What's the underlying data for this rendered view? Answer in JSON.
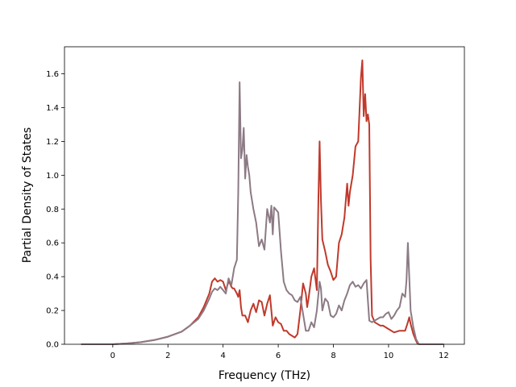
{
  "chart_data": {
    "type": "line",
    "title": "",
    "xlabel": "Frequency (THz)",
    "ylabel": "Partial Density of States",
    "xlim": [
      -1.75,
      12.75
    ],
    "ylim": [
      0,
      1.76
    ],
    "xticks": [
      0,
      2,
      4,
      6,
      8,
      10,
      12
    ],
    "yticks": [
      0.0,
      0.2,
      0.4,
      0.6,
      0.8,
      1.0,
      1.2,
      1.4,
      1.6
    ],
    "xtick_labels": [
      "0",
      "2",
      "4",
      "6",
      "8",
      "10",
      "12"
    ],
    "ytick_labels": [
      "0.0",
      "0.2",
      "0.4",
      "0.6",
      "0.8",
      "1.0",
      "1.2",
      "1.4",
      "1.6"
    ],
    "grid": false,
    "legend": "none",
    "series": [
      {
        "color": "#c0392b",
        "x": [
          -1.15,
          0,
          0.5,
          1,
          1.5,
          2,
          2.5,
          2.8,
          3.1,
          3.3,
          3.5,
          3.6,
          3.7,
          3.8,
          3.9,
          4.0,
          4.1,
          4.2,
          4.25,
          4.3,
          4.35,
          4.4,
          4.5,
          4.55,
          4.6,
          4.65,
          4.7,
          4.8,
          4.9,
          5.0,
          5.1,
          5.2,
          5.3,
          5.4,
          5.5,
          5.6,
          5.7,
          5.8,
          5.9,
          6.0,
          6.1,
          6.2,
          6.3,
          6.4,
          6.5,
          6.6,
          6.7,
          6.8,
          6.9,
          7.0,
          7.05,
          7.1,
          7.2,
          7.3,
          7.4,
          7.45,
          7.5,
          7.55,
          7.6,
          7.7,
          7.8,
          7.9,
          8.0,
          8.1,
          8.2,
          8.3,
          8.4,
          8.5,
          8.55,
          8.6,
          8.7,
          8.8,
          8.9,
          9.0,
          9.05,
          9.1,
          9.15,
          9.2,
          9.25,
          9.3,
          9.35,
          9.4,
          9.5,
          9.6,
          9.7,
          9.8,
          9.9,
          10.0,
          10.2,
          10.4,
          10.6,
          10.7,
          10.75,
          10.8,
          10.9,
          11.0,
          11.05,
          11.1,
          12.0
        ],
        "y": [
          0,
          0,
          0.005,
          0.012,
          0.025,
          0.045,
          0.075,
          0.11,
          0.16,
          0.22,
          0.3,
          0.37,
          0.39,
          0.37,
          0.38,
          0.37,
          0.32,
          0.37,
          0.36,
          0.34,
          0.33,
          0.33,
          0.3,
          0.28,
          0.32,
          0.22,
          0.17,
          0.17,
          0.13,
          0.2,
          0.24,
          0.19,
          0.26,
          0.25,
          0.17,
          0.24,
          0.29,
          0.11,
          0.16,
          0.13,
          0.12,
          0.08,
          0.08,
          0.06,
          0.05,
          0.04,
          0.06,
          0.2,
          0.36,
          0.3,
          0.22,
          0.27,
          0.4,
          0.45,
          0.32,
          0.8,
          1.2,
          0.85,
          0.62,
          0.55,
          0.47,
          0.43,
          0.38,
          0.4,
          0.6,
          0.65,
          0.75,
          0.95,
          0.82,
          0.9,
          1.0,
          1.17,
          1.2,
          1.58,
          1.68,
          1.35,
          1.48,
          1.32,
          1.36,
          1.3,
          0.5,
          0.17,
          0.13,
          0.12,
          0.11,
          0.11,
          0.1,
          0.09,
          0.07,
          0.08,
          0.08,
          0.13,
          0.16,
          0.12,
          0.06,
          0.02,
          0.005,
          0,
          0
        ]
      },
      {
        "color": "#8c7a84",
        "x": [
          -1.15,
          0,
          0.5,
          1,
          1.5,
          2,
          2.5,
          2.8,
          3.1,
          3.3,
          3.5,
          3.6,
          3.7,
          3.8,
          3.9,
          4.0,
          4.1,
          4.2,
          4.3,
          4.4,
          4.5,
          4.55,
          4.6,
          4.65,
          4.7,
          4.75,
          4.8,
          4.85,
          4.9,
          4.95,
          5.0,
          5.1,
          5.2,
          5.3,
          5.4,
          5.5,
          5.6,
          5.7,
          5.75,
          5.8,
          5.85,
          5.9,
          6.0,
          6.1,
          6.2,
          6.3,
          6.4,
          6.5,
          6.6,
          6.7,
          6.8,
          6.9,
          7.0,
          7.1,
          7.2,
          7.3,
          7.4,
          7.5,
          7.55,
          7.6,
          7.7,
          7.8,
          7.9,
          8.0,
          8.1,
          8.2,
          8.3,
          8.4,
          8.5,
          8.6,
          8.7,
          8.8,
          8.9,
          9.0,
          9.1,
          9.2,
          9.3,
          9.4,
          9.5,
          9.6,
          9.7,
          9.8,
          9.9,
          10.0,
          10.1,
          10.2,
          10.3,
          10.4,
          10.5,
          10.6,
          10.65,
          10.7,
          10.75,
          10.8,
          10.9,
          11.0,
          11.1,
          12.0
        ],
        "y": [
          0,
          0,
          0.005,
          0.012,
          0.025,
          0.045,
          0.075,
          0.11,
          0.15,
          0.2,
          0.27,
          0.31,
          0.33,
          0.32,
          0.34,
          0.32,
          0.3,
          0.39,
          0.35,
          0.45,
          0.5,
          0.9,
          1.55,
          1.1,
          1.15,
          1.28,
          0.98,
          1.12,
          1.05,
          1.0,
          0.9,
          0.8,
          0.72,
          0.58,
          0.62,
          0.56,
          0.8,
          0.72,
          0.82,
          0.65,
          0.81,
          0.8,
          0.78,
          0.55,
          0.37,
          0.32,
          0.3,
          0.29,
          0.26,
          0.25,
          0.28,
          0.18,
          0.08,
          0.08,
          0.13,
          0.1,
          0.2,
          0.37,
          0.33,
          0.2,
          0.27,
          0.25,
          0.17,
          0.16,
          0.18,
          0.23,
          0.2,
          0.26,
          0.3,
          0.35,
          0.37,
          0.34,
          0.35,
          0.33,
          0.36,
          0.38,
          0.14,
          0.13,
          0.14,
          0.15,
          0.16,
          0.16,
          0.18,
          0.19,
          0.15,
          0.17,
          0.2,
          0.22,
          0.3,
          0.28,
          0.38,
          0.6,
          0.4,
          0.2,
          0.1,
          0.03,
          0,
          0
        ]
      }
    ]
  }
}
